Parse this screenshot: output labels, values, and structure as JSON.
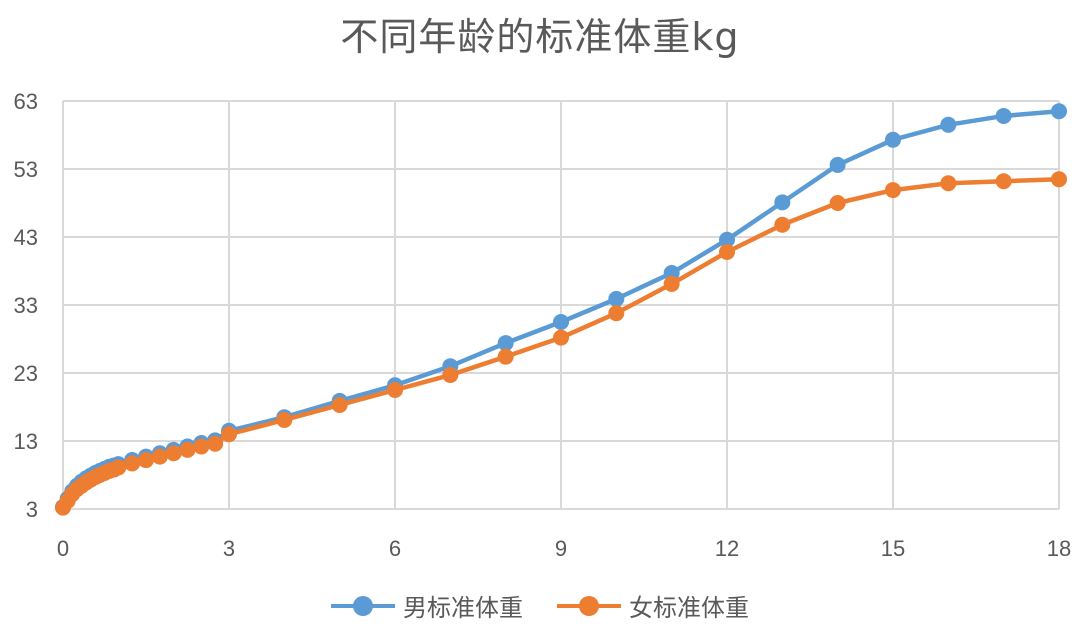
{
  "chart_data": {
    "type": "line",
    "title": "不同年龄的标准体重kg",
    "xlabel": "",
    "ylabel": "",
    "xlim": [
      0,
      18
    ],
    "ylim": [
      3,
      63
    ],
    "x_ticks": [
      0,
      3,
      6,
      9,
      12,
      15,
      18
    ],
    "y_ticks": [
      3,
      13,
      23,
      33,
      43,
      53,
      63
    ],
    "grid": true,
    "legend_position": "bottom",
    "x": [
      0,
      0.0833,
      0.1667,
      0.25,
      0.3333,
      0.4167,
      0.5,
      0.5833,
      0.6667,
      0.75,
      0.8333,
      0.9167,
      1,
      1.25,
      1.5,
      1.75,
      2,
      2.25,
      2.5,
      2.75,
      3,
      4,
      5,
      6,
      7,
      8,
      9,
      10,
      11,
      12,
      13,
      14,
      15,
      16,
      17,
      18
    ],
    "series": [
      {
        "name": "男标准体重",
        "color": "#5b9bd5",
        "values": [
          3.3,
          4.5,
          5.6,
          6.4,
          7.0,
          7.5,
          7.9,
          8.3,
          8.6,
          8.9,
          9.2,
          9.4,
          9.6,
          10.2,
          10.7,
          11.2,
          11.7,
          12.2,
          12.7,
          13.1,
          14.5,
          16.5,
          18.9,
          21.2,
          24.0,
          27.4,
          30.5,
          33.9,
          37.7,
          42.6,
          48.1,
          53.6,
          57.3,
          59.5,
          60.8,
          61.5
        ]
      },
      {
        "name": "女标准体重",
        "color": "#ed7d31",
        "values": [
          3.2,
          4.2,
          5.2,
          5.9,
          6.4,
          6.9,
          7.3,
          7.7,
          8.0,
          8.3,
          8.6,
          8.8,
          9.1,
          9.7,
          10.2,
          10.7,
          11.2,
          11.7,
          12.2,
          12.6,
          14.0,
          16.1,
          18.3,
          20.5,
          22.7,
          25.4,
          28.2,
          31.8,
          36.1,
          40.8,
          44.8,
          48.0,
          49.9,
          50.9,
          51.2,
          51.5
        ]
      }
    ]
  },
  "title": "不同年龄的标准体重kg",
  "legend": {
    "items": [
      {
        "label": "男标准体重",
        "color": "#5b9bd5"
      },
      {
        "label": "女标准体重",
        "color": "#ed7d31"
      }
    ]
  }
}
